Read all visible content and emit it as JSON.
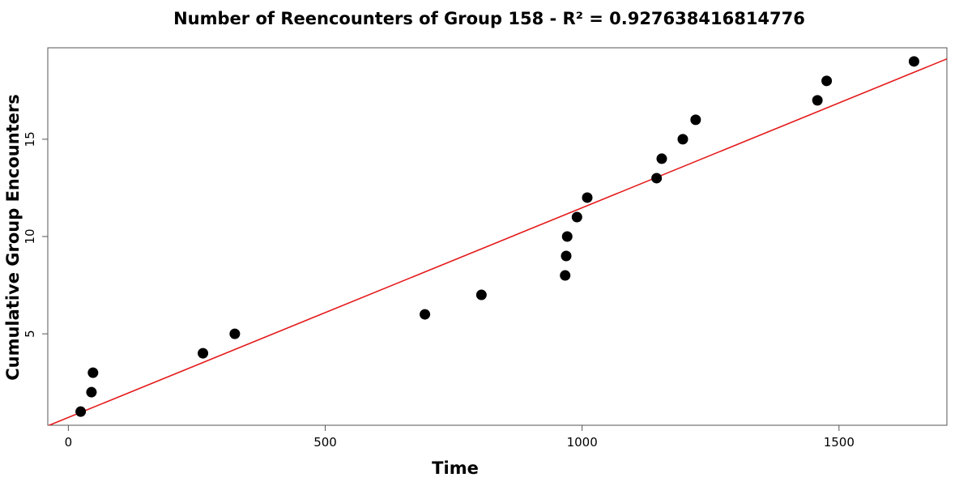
{
  "chart_data": {
    "type": "scatter",
    "title": "Number of Reencounters of Group 158 - R² = 0.927638416814776",
    "xlabel": "Time",
    "ylabel": "Cumulative Group Encounters",
    "xlim": [
      -40,
      1710
    ],
    "ylim": [
      0.3,
      19.7
    ],
    "x_ticks": [
      0,
      500,
      1000,
      1500
    ],
    "y_ticks": [
      5,
      10,
      15
    ],
    "x_tick_labels": [
      "0",
      "500",
      "1000",
      "1500"
    ],
    "y_tick_labels": [
      "5",
      "10",
      "15"
    ],
    "grid": false,
    "legend": "none",
    "series": [
      {
        "points": [
          {
            "x": 24,
            "y": 1
          },
          {
            "x": 45,
            "y": 2
          },
          {
            "x": 48,
            "y": 3
          },
          {
            "x": 262,
            "y": 4
          },
          {
            "x": 324,
            "y": 5
          },
          {
            "x": 694,
            "y": 6
          },
          {
            "x": 804,
            "y": 7
          },
          {
            "x": 967,
            "y": 8
          },
          {
            "x": 969,
            "y": 9
          },
          {
            "x": 971,
            "y": 10
          },
          {
            "x": 990,
            "y": 11
          },
          {
            "x": 1010,
            "y": 12
          },
          {
            "x": 1145,
            "y": 13
          },
          {
            "x": 1155,
            "y": 14
          },
          {
            "x": 1196,
            "y": 15
          },
          {
            "x": 1221,
            "y": 16
          },
          {
            "x": 1458,
            "y": 17
          },
          {
            "x": 1476,
            "y": 18
          },
          {
            "x": 1646,
            "y": 19
          }
        ],
        "color": "#000000"
      }
    ],
    "fit_line": {
      "type": "linear",
      "color": "#e41a1c",
      "points": [
        [
          -40,
          0.27
        ],
        [
          1710,
          19.13
        ]
      ]
    }
  }
}
